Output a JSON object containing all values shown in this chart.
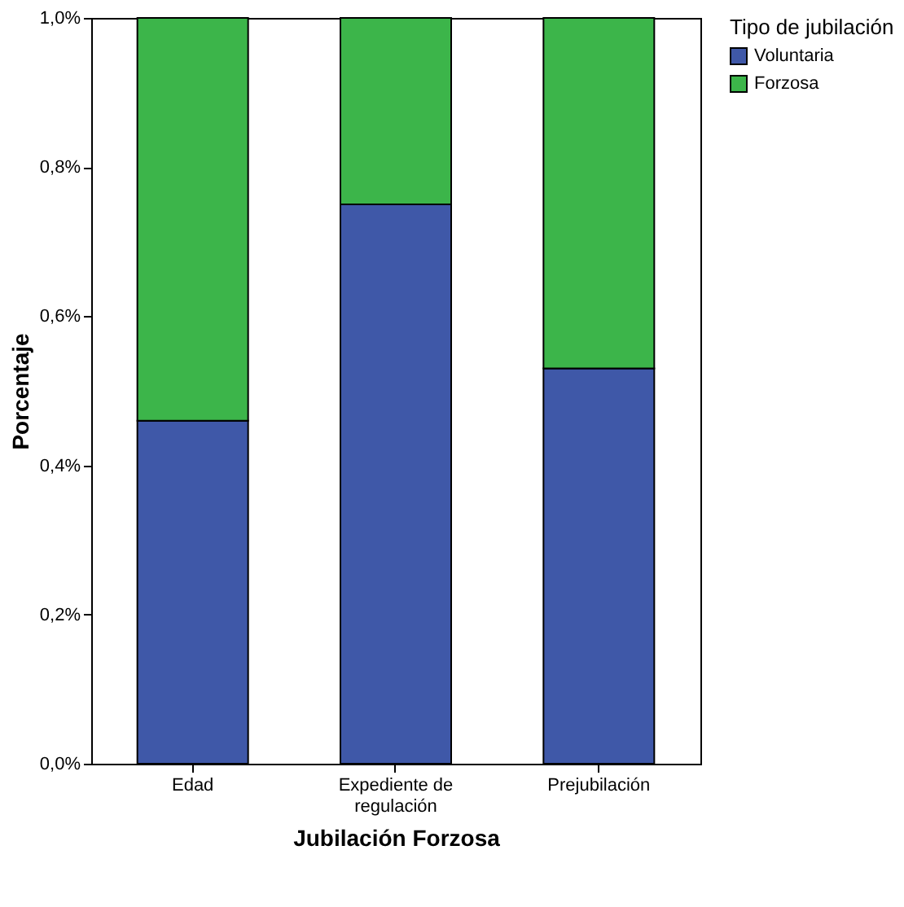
{
  "chart_data": {
    "type": "bar",
    "stacked": true,
    "xlabel": "Jubilación Forzosa",
    "ylabel": "Porcentaje",
    "legend_title": "Tipo de jubilación",
    "legend": "top right",
    "grid": false,
    "categories": [
      "Edad",
      "Expediente de regulación",
      "Prejubilación"
    ],
    "series": [
      {
        "name": "Voluntaria",
        "color": "#3f58a8",
        "values": [
          0.46,
          0.75,
          0.53
        ]
      },
      {
        "name": "Forzosa",
        "color": "#3cb54a",
        "values": [
          0.54,
          0.25,
          0.47
        ]
      }
    ],
    "ylim": [
      0,
      1
    ],
    "yticks": [
      {
        "value": 0,
        "label": "0,0%"
      },
      {
        "value": 0.2,
        "label": "0,2%"
      },
      {
        "value": 0.4,
        "label": "0,4%"
      },
      {
        "value": 0.6,
        "label": "0,6%"
      },
      {
        "value": 0.8,
        "label": "0,8%"
      },
      {
        "value": 1,
        "label": "1,0%"
      }
    ]
  }
}
